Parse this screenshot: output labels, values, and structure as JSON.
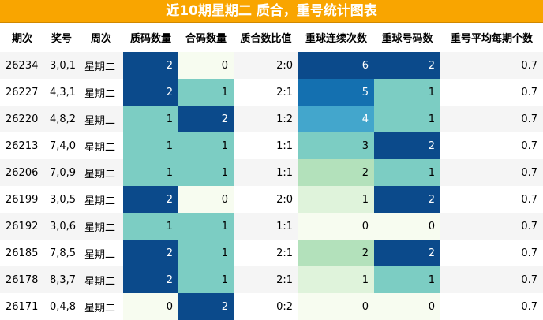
{
  "title": "近10期星期二 质合，重号统计图表",
  "columns": [
    "期次",
    "奖号",
    "周次",
    "质码数量",
    "合码数量",
    "质合数比值",
    "重球连续次数",
    "重球号码数",
    "重号平均每期个数"
  ],
  "chart_data": {
    "type": "table",
    "title": "近10期星期二 质合，重号统计图表",
    "columns": [
      "期次",
      "奖号",
      "周次",
      "质码数量",
      "合码数量",
      "质合数比值",
      "重球连续次数",
      "重球号码数",
      "重号平均每期个数"
    ],
    "rows": [
      [
        "26234",
        "3,0,1",
        "星期二",
        2,
        0,
        "2:0",
        6,
        2,
        "0.7"
      ],
      [
        "26227",
        "4,3,1",
        "星期二",
        2,
        1,
        "2:1",
        5,
        1,
        "0.7"
      ],
      [
        "26220",
        "4,8,2",
        "星期二",
        1,
        2,
        "1:2",
        4,
        1,
        "0.7"
      ],
      [
        "26213",
        "7,4,0",
        "星期二",
        1,
        1,
        "1:1",
        3,
        2,
        "0.7"
      ],
      [
        "26206",
        "7,0,9",
        "星期二",
        1,
        1,
        "1:1",
        2,
        1,
        "0.7"
      ],
      [
        "26199",
        "3,0,5",
        "星期二",
        2,
        0,
        "2:0",
        1,
        2,
        "0.7"
      ],
      [
        "26192",
        "3,0,6",
        "星期二",
        1,
        1,
        "1:1",
        0,
        0,
        "0.7"
      ],
      [
        "26185",
        "7,8,5",
        "星期二",
        2,
        1,
        "2:1",
        2,
        2,
        "0.7"
      ],
      [
        "26178",
        "8,3,7",
        "星期二",
        2,
        1,
        "2:1",
        1,
        1,
        "0.7"
      ],
      [
        "26171",
        "0,4,8",
        "星期二",
        0,
        2,
        "0:2",
        0,
        0,
        "0.7"
      ]
    ],
    "heatmap_columns": [
      3,
      4,
      6,
      7
    ],
    "colors": {
      "small_scale": [
        "#f7fcf0",
        "#7ccdc3",
        "#0b4a8b"
      ],
      "run_scale": [
        "#f7fcf0",
        "#dff3db",
        "#b3e1bb",
        "#7ccdc3",
        "#43a6cc",
        "#1470b0",
        "#0b4a8b"
      ],
      "stripe": "#f5f5f5",
      "header_bg": "#f9a500"
    }
  }
}
